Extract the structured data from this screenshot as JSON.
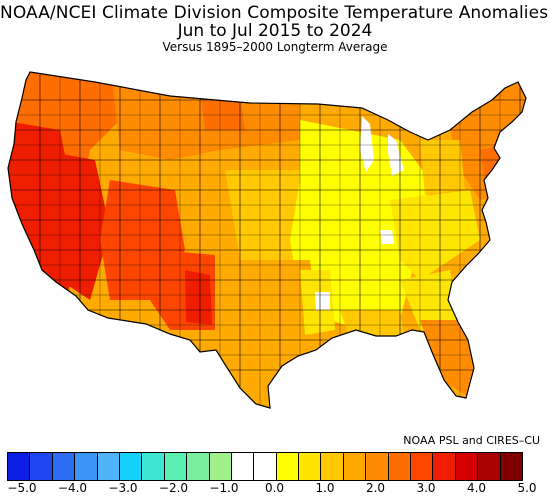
{
  "title_line1": "NOAA/NCEI Climate Division Composite Temperature Anomalies (F)",
  "title_line2": "Jun to Jul 2015 to 2024",
  "title_line3": "Versus 1895–2000 Longterm Average",
  "credit": "NOAA PSL and CIRES–CU",
  "legend": {
    "colors": [
      "#0a1ee6",
      "#1e46f0",
      "#2d6ef5",
      "#3c96f5",
      "#50b4fa",
      "#14d2fa",
      "#3ce6d2",
      "#5af0b4",
      "#78f0a0",
      "#a0f08c",
      "#ffffff",
      "#ffffff",
      "#ffff00",
      "#ffe600",
      "#ffc800",
      "#ffaa00",
      "#ff8c00",
      "#ff6e00",
      "#ff4600",
      "#f01e00",
      "#d20000",
      "#aa0000",
      "#800000"
    ],
    "ticks": [
      "−5.0",
      "−4.0",
      "−3.0",
      "−2.0",
      "−1.0",
      "0.0",
      "1.0",
      "2.0",
      "3.0",
      "4.0",
      "5.0"
    ],
    "tick_values": [
      -5,
      -4,
      -3,
      -2,
      -1,
      0,
      1,
      2,
      3,
      4,
      5
    ]
  },
  "map_regions": [
    {
      "region": "Pacific Northwest coast",
      "anomaly_f": 3.0,
      "color": "#ff6e00"
    },
    {
      "region": "California / Nevada",
      "anomaly_f": 3.5,
      "color": "#f01e00"
    },
    {
      "region": "Arizona / Utah / New Mexico",
      "anomaly_f": 3.5,
      "color": "#ff4600"
    },
    {
      "region": "Northern Rockies / Plains",
      "anomaly_f": 2.5,
      "color": "#ff8c00"
    },
    {
      "region": "Southern Plains / Texas",
      "anomaly_f": 1.5,
      "color": "#ffaa00"
    },
    {
      "region": "Midwest / Mississippi Valley",
      "anomaly_f": 0.5,
      "color": "#ffff00"
    },
    {
      "region": "Southeast",
      "anomaly_f": 1.0,
      "color": "#ffe600"
    },
    {
      "region": "Florida",
      "anomaly_f": 2.0,
      "color": "#ffaa00"
    },
    {
      "region": "Northeast / New England",
      "anomaly_f": 2.5,
      "color": "#ff8c00"
    }
  ]
}
